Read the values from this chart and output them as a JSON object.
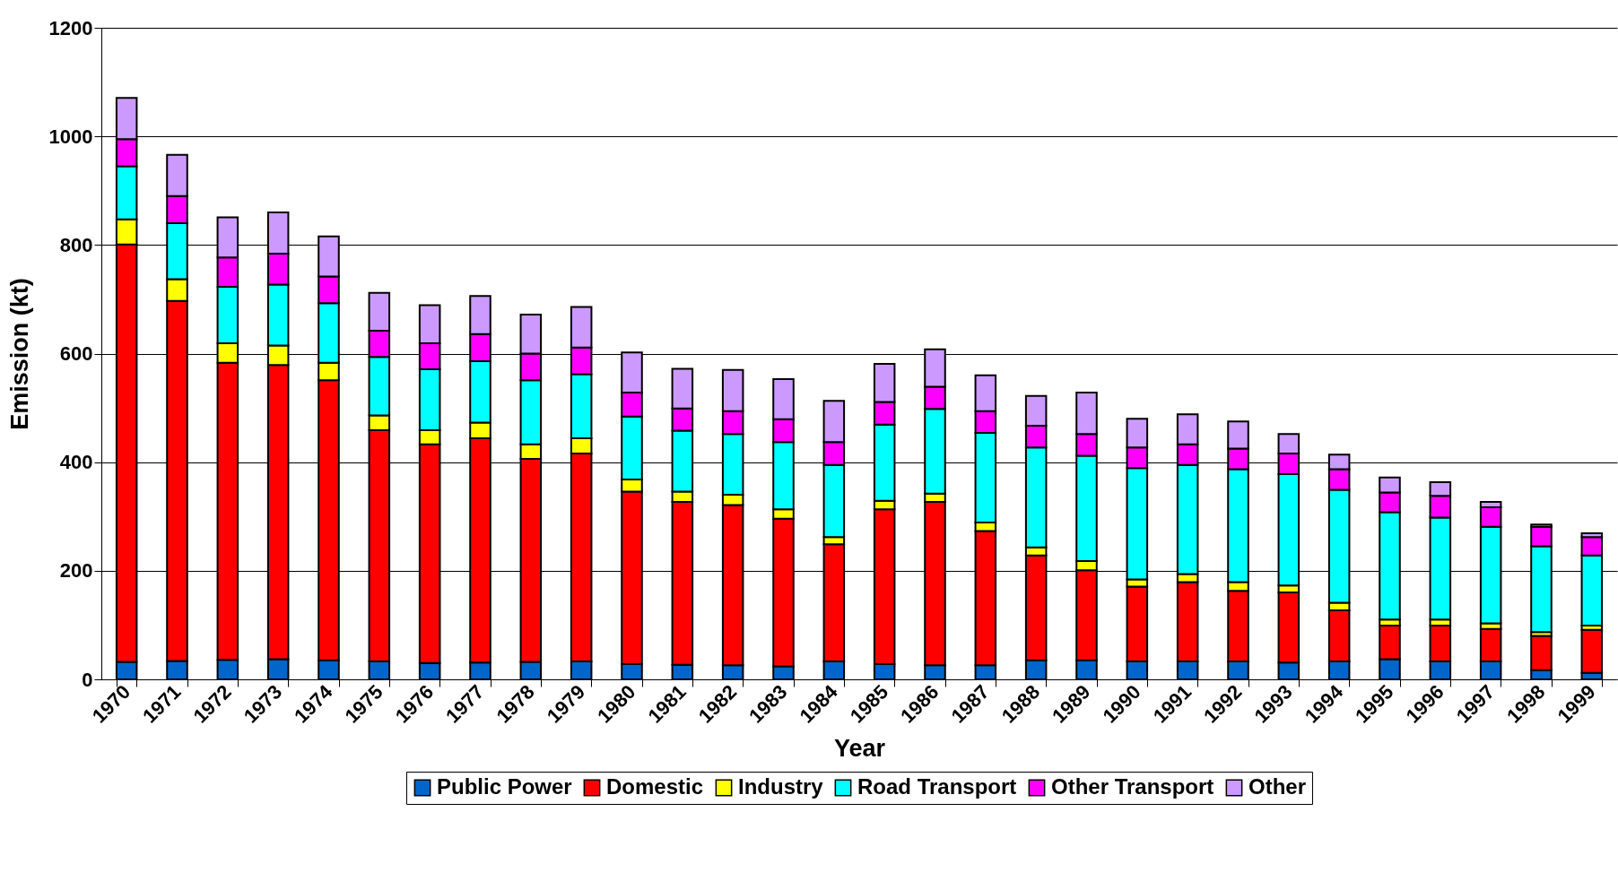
{
  "chart_data": {
    "type": "bar",
    "stacked": true,
    "xlabel": "Year",
    "ylabel": "Emission (kt)",
    "categories": [
      "1970",
      "1971",
      "1972",
      "1973",
      "1974",
      "1975",
      "1976",
      "1977",
      "1978",
      "1979",
      "1980",
      "1981",
      "1982",
      "1983",
      "1984",
      "1985",
      "1986",
      "1987",
      "1988",
      "1989",
      "1990",
      "1991",
      "1992",
      "1993",
      "1994",
      "1995",
      "1996",
      "1997",
      "1998",
      "1999"
    ],
    "series": [
      {
        "name": "Public Power",
        "color": "#0066cc",
        "values": [
          32,
          34,
          36,
          37,
          35,
          33,
          30,
          31,
          32,
          33,
          28,
          27,
          26,
          24,
          33,
          28,
          26,
          26,
          35,
          35,
          33,
          33,
          33,
          31,
          33,
          37,
          33,
          33,
          17,
          12
        ]
      },
      {
        "name": "Domestic",
        "color": "#ff0000",
        "values": [
          769,
          663,
          547,
          542,
          516,
          426,
          403,
          413,
          374,
          383,
          318,
          300,
          295,
          272,
          216,
          285,
          301,
          247,
          193,
          166,
          138,
          146,
          130,
          129,
          94,
          62,
          66,
          60,
          63,
          79
        ]
      },
      {
        "name": "Industry",
        "color": "#ffff00",
        "values": [
          46,
          40,
          36,
          36,
          32,
          27,
          26,
          29,
          27,
          28,
          22,
          19,
          19,
          17,
          13,
          16,
          15,
          16,
          15,
          17,
          13,
          15,
          16,
          13,
          14,
          11,
          11,
          10,
          7,
          8
        ]
      },
      {
        "name": "Road Transport",
        "color": "#00ffff",
        "values": [
          98,
          103,
          104,
          112,
          110,
          108,
          112,
          113,
          118,
          118,
          116,
          112,
          112,
          124,
          133,
          140,
          156,
          165,
          184,
          194,
          205,
          201,
          208,
          205,
          208,
          198,
          188,
          178,
          158,
          129
        ]
      },
      {
        "name": "Other Transport",
        "color": "#ff00ff",
        "values": [
          50,
          50,
          54,
          57,
          49,
          48,
          48,
          50,
          49,
          49,
          44,
          41,
          42,
          42,
          42,
          42,
          41,
          40,
          40,
          40,
          38,
          38,
          38,
          38,
          38,
          36,
          40,
          36,
          36,
          34
        ]
      },
      {
        "name": "Other",
        "color": "#cc99ff",
        "values": [
          76,
          76,
          74,
          76,
          74,
          70,
          70,
          70,
          72,
          75,
          74,
          73,
          76,
          74,
          76,
          70,
          69,
          66,
          55,
          76,
          53,
          55,
          50,
          36,
          27,
          28,
          25,
          10,
          4,
          7
        ]
      }
    ],
    "ylim": [
      0,
      1200
    ],
    "yticks": [
      0,
      200,
      400,
      600,
      800,
      1000,
      1200
    ],
    "grid": "y",
    "legend": "bottom"
  }
}
